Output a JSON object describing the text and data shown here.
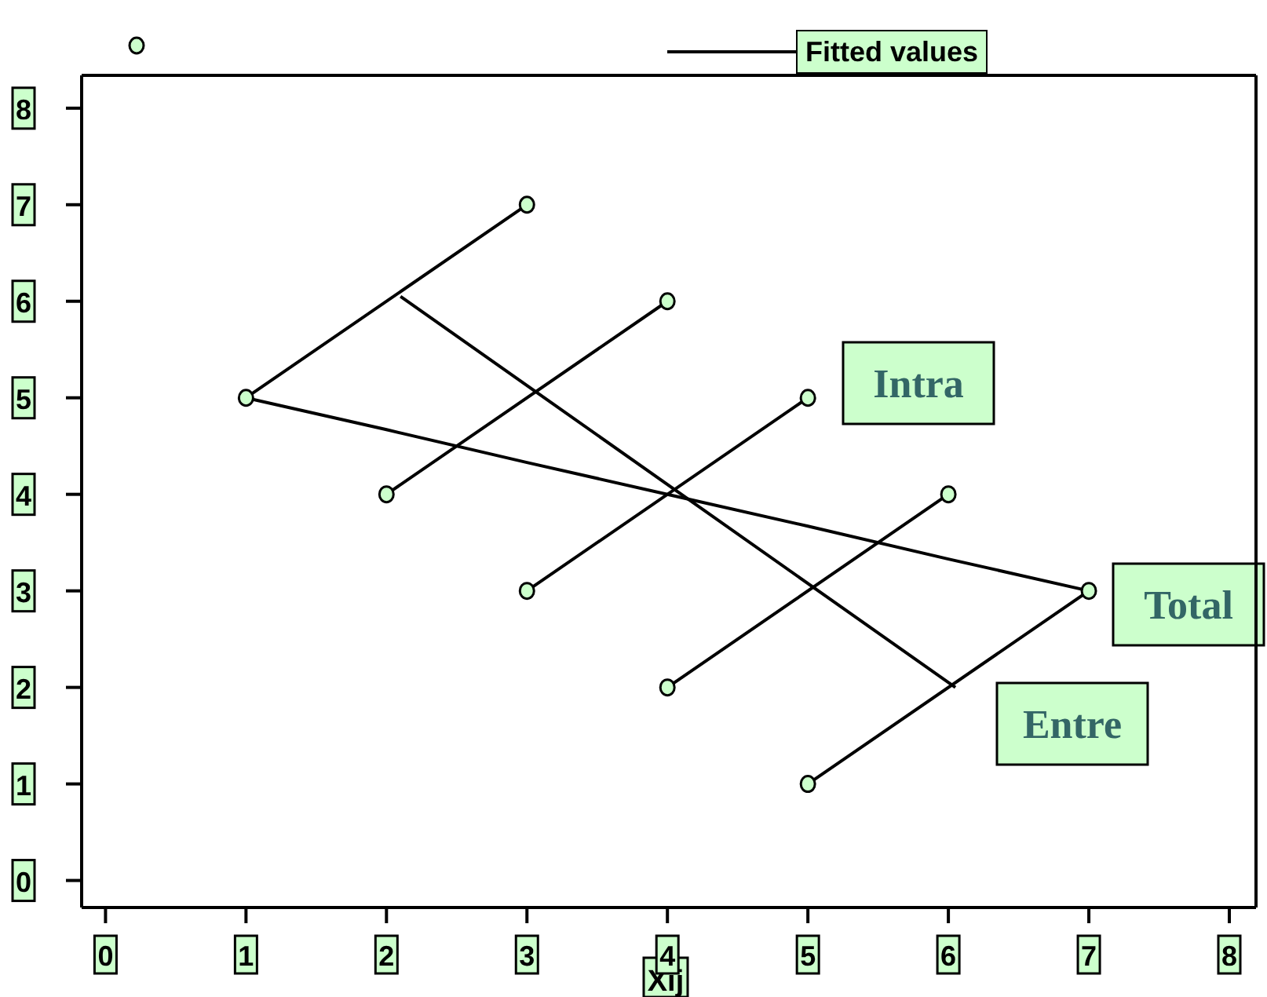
{
  "chart_data": {
    "type": "scatter",
    "xlabel": "Xij",
    "xlim": [
      -0.17,
      8.19
    ],
    "ylim": [
      -0.28,
      8.34
    ],
    "xticks": [
      0,
      1,
      2,
      3,
      4,
      5,
      6,
      7,
      8
    ],
    "yticks": [
      0,
      1,
      2,
      3,
      4,
      5,
      6,
      7,
      8
    ],
    "legend": "top",
    "marker": "circle",
    "series": [
      {
        "color": "#ccffcc",
        "x": [
          1,
          2,
          3,
          3,
          4,
          4,
          5,
          5,
          6,
          7
        ],
        "values": [
          5,
          4,
          7,
          3,
          6,
          2,
          5,
          1,
          4,
          3
        ]
      },
      {
        "type": "line",
        "name": "Fitted values",
        "color": "#000000",
        "marker": "none",
        "x": [
          1,
          2,
          3,
          4,
          5,
          6,
          7
        ],
        "values": [
          5,
          4.67,
          4.33,
          4,
          3.67,
          3.33,
          3
        ]
      },
      {
        "type": "line",
        "color": "#000000",
        "marker": "none",
        "x": [
          1,
          3
        ],
        "values": [
          5,
          7
        ]
      },
      {
        "type": "line",
        "color": "#000000",
        "marker": "none",
        "x": [
          2,
          4
        ],
        "values": [
          4,
          6
        ]
      },
      {
        "type": "line",
        "color": "#000000",
        "marker": "none",
        "x": [
          3,
          5
        ],
        "values": [
          3,
          5
        ]
      },
      {
        "type": "line",
        "color": "#000000",
        "marker": "none",
        "x": [
          4,
          6
        ],
        "values": [
          2,
          4
        ]
      },
      {
        "type": "line",
        "color": "#000000",
        "marker": "none",
        "x": [
          5,
          7
        ],
        "values": [
          1,
          3
        ]
      },
      {
        "type": "line",
        "color": "#000000",
        "marker": "none",
        "x": [
          2.1,
          6.05
        ],
        "values": [
          6.05,
          2
        ]
      }
    ],
    "annotations": [
      "Intra",
      "Total",
      "Entre"
    ]
  }
}
